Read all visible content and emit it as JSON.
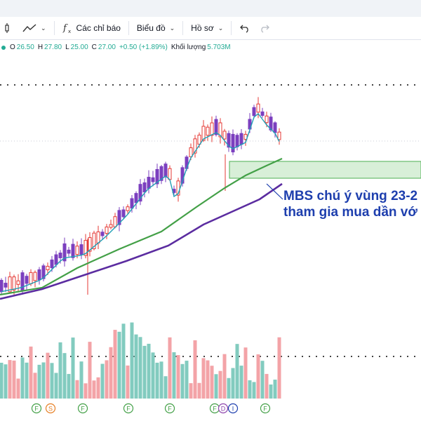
{
  "toolbar": {
    "indicators_label": "Các chỉ báo",
    "layout_label": "Biểu đồ",
    "profile_label": "Hồ sơ"
  },
  "legend": {
    "open_label": "O",
    "open": "26.50",
    "high_label": "H",
    "high": "27.80",
    "low_label": "L",
    "low": "25.00",
    "close_label": "C",
    "close": "27.00",
    "change": "+0.50 (+1.89%)",
    "volume_label": "Khối lượng",
    "volume": "5.703M"
  },
  "annotation": {
    "line1": "MBS chú ý vùng 23-2",
    "line2": "tham gia mua dần vớ"
  },
  "colors": {
    "up": "#7b3fbf",
    "down": "#e53935",
    "ma_fast": "#1f9fb5",
    "ma_mid": "#43a047",
    "ma_slow": "#5b2ca0",
    "vol_up": "#82cbbf",
    "vol_down": "#f3a3a7",
    "zone": "#d8efd8",
    "value_green": "#22ab94"
  },
  "event_markers": [
    "F",
    "S",
    "F",
    "F",
    "F",
    "F",
    "D",
    "I",
    "F"
  ]
}
